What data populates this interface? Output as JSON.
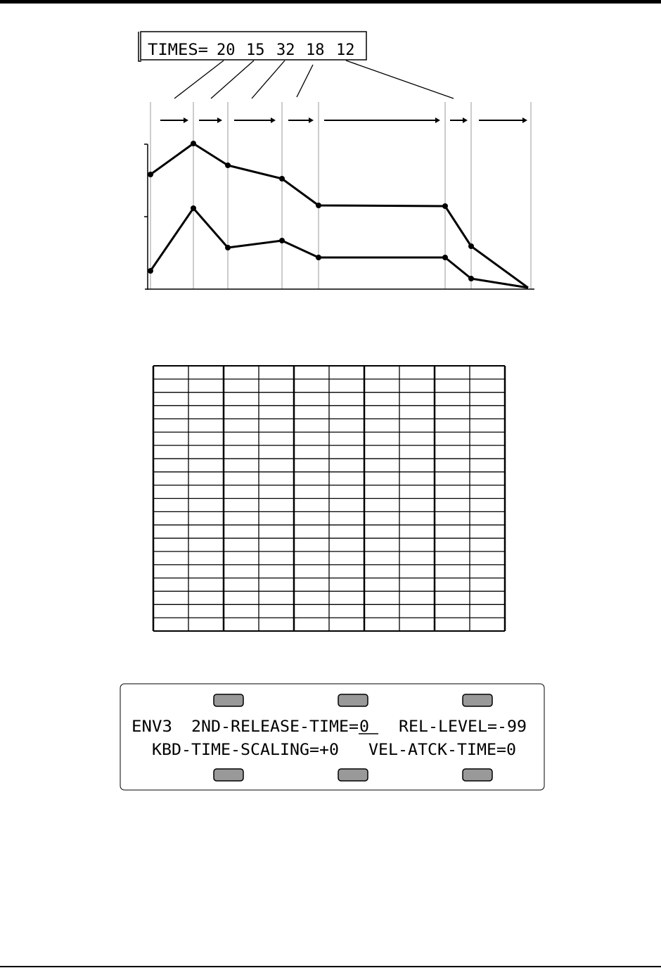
{
  "times_box": {
    "label": "TIMES=",
    "values": [
      20,
      15,
      32,
      18,
      12
    ]
  },
  "display": {
    "line1": {
      "envelope": "ENV3",
      "parameter": "2ND-RELEASE-TIME=",
      "cursor_value": "0",
      "second": "REL-LEVEL=-99"
    },
    "line2": {
      "first": "KBD-TIME-SCALING=+0",
      "second": "VEL-ATCK-TIME=0"
    }
  }
}
